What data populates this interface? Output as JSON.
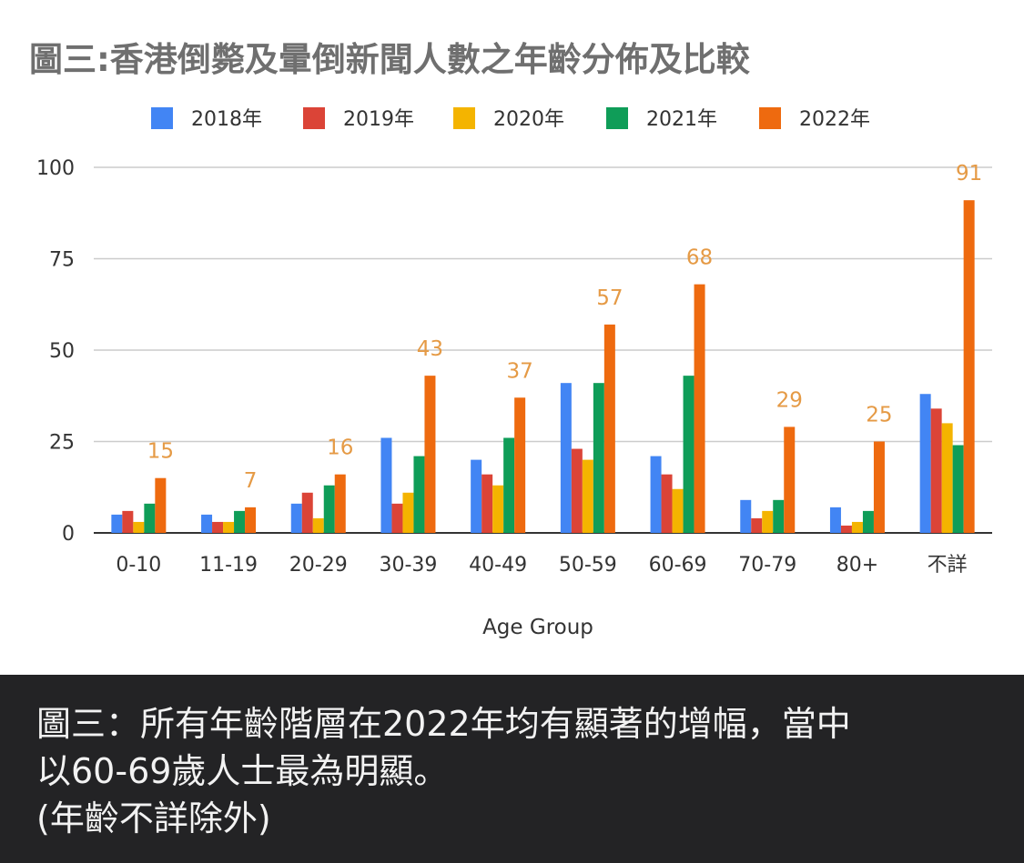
{
  "chart_data": {
    "type": "bar",
    "title": "圖三:香港倒斃及暈倒新聞人數之年齡分佈及比較",
    "xlabel": "Age Group",
    "ylabel": "",
    "ylim": [
      0,
      100
    ],
    "yticks": [
      0,
      25,
      50,
      75,
      100
    ],
    "grid": true,
    "legend_position": "top",
    "categories": [
      "0-10",
      "11-19",
      "20-29",
      "30-39",
      "40-49",
      "50-59",
      "60-69",
      "70-79",
      "80+",
      "不詳"
    ],
    "series": [
      {
        "name": "2018年",
        "color": "#4285f4",
        "values": [
          5,
          5,
          8,
          26,
          20,
          41,
          21,
          9,
          7,
          38
        ]
      },
      {
        "name": "2019年",
        "color": "#db4437",
        "values": [
          6,
          3,
          11,
          8,
          16,
          23,
          16,
          4,
          2,
          34
        ]
      },
      {
        "name": "2020年",
        "color": "#f4b400",
        "values": [
          3,
          3,
          4,
          11,
          13,
          20,
          12,
          6,
          3,
          30
        ]
      },
      {
        "name": "2021年",
        "color": "#0f9d58",
        "values": [
          8,
          6,
          13,
          21,
          26,
          41,
          43,
          9,
          6,
          24
        ]
      },
      {
        "name": "2022年",
        "color": "#ee6a0f",
        "values": [
          15,
          7,
          16,
          43,
          37,
          57,
          68,
          29,
          25,
          91
        ]
      }
    ],
    "data_labels": {
      "series": "2022年",
      "values": [
        "15",
        "7",
        "16",
        "43",
        "37",
        "57",
        "68",
        "29",
        "25",
        "91"
      ],
      "color": "#e59a45"
    }
  },
  "caption": {
    "text": "圖三：所有年齡階層在2022年均有顯著的增幅，當中\n以60-69歲人士最為明顯。\n(年齡不詳除外)"
  }
}
